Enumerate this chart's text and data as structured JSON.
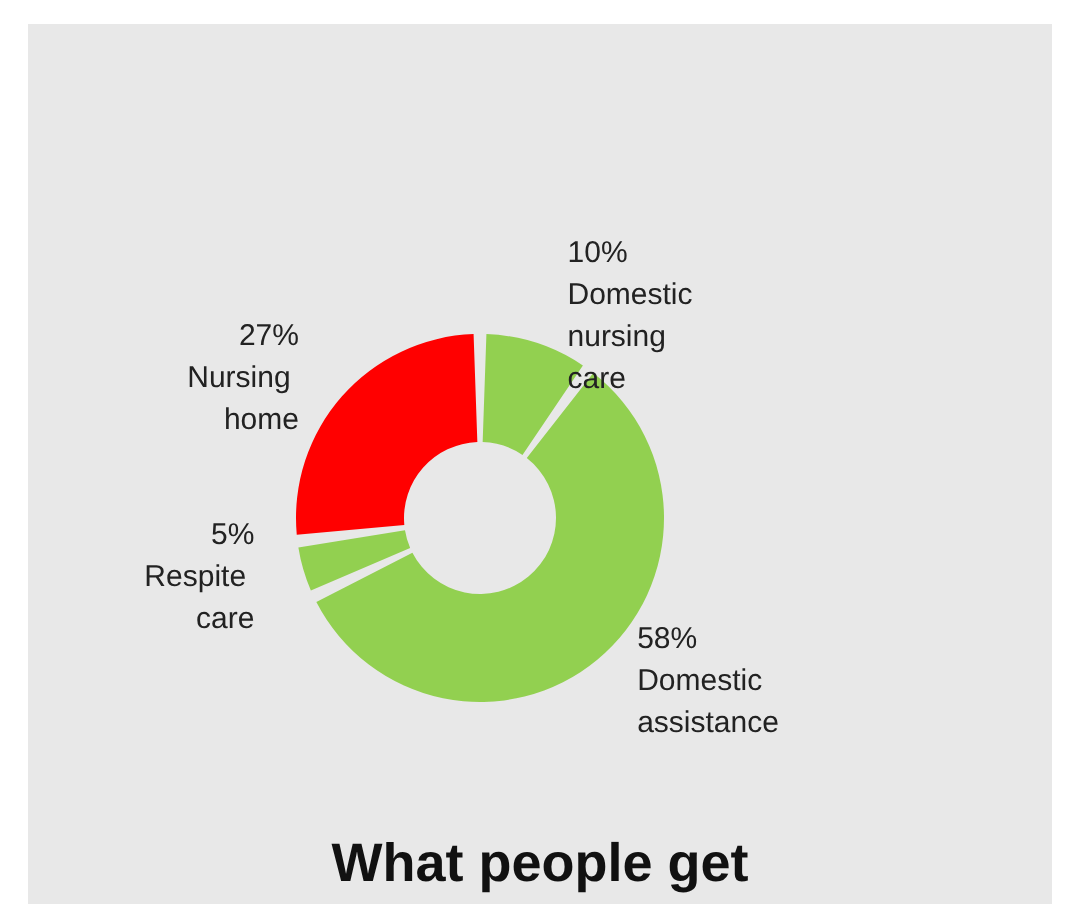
{
  "chart_data": {
    "type": "donut",
    "title": "What people get",
    "categories": [
      "Domestic nursing care",
      "Domestic assistance",
      "Respite care",
      "Nursing home"
    ],
    "values": [
      10,
      58,
      5,
      27
    ],
    "value_labels": [
      "10%",
      "58%",
      "5%",
      "27%"
    ],
    "colors": [
      "#92d050",
      "#92d050",
      "#92d050",
      "#ff0000"
    ],
    "legend": false
  }
}
